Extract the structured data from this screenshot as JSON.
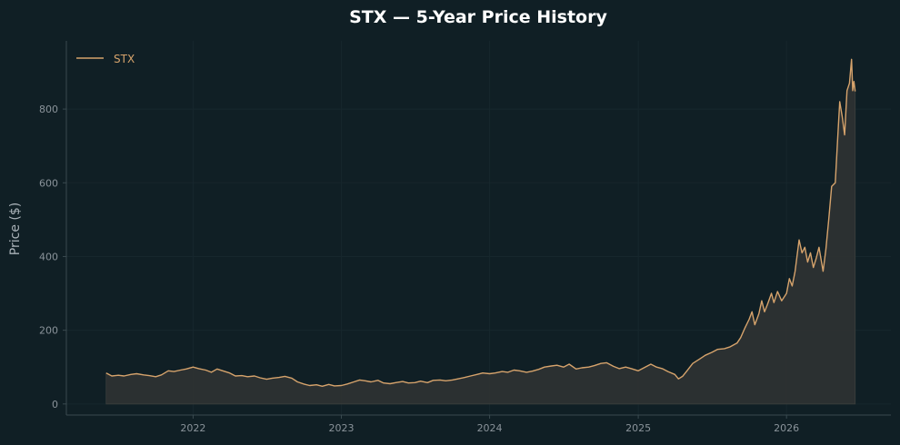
{
  "chart_data": {
    "type": "area",
    "title": "STX — 5-Year Price History",
    "xlabel": "",
    "ylabel": "Price ($)",
    "x_ticks": [
      "2022",
      "2023",
      "2024",
      "2025",
      "2026"
    ],
    "y_ticks": [
      0,
      200,
      400,
      600,
      800
    ],
    "xlim": [
      "2021-02-23",
      "2026-09-15"
    ],
    "ylim": [
      -30,
      985
    ],
    "grid": true,
    "legend_position": "top-left",
    "colors": {
      "background": "#101f25",
      "line": "#d6a36c",
      "fill": "#2d3232",
      "axis": "#3a4a50",
      "grid": "#17272d"
    },
    "series": [
      {
        "name": "STX",
        "points": [
          [
            "2021-06-01",
            84
          ],
          [
            "2021-06-15",
            76
          ],
          [
            "2021-07-01",
            78
          ],
          [
            "2021-07-15",
            76
          ],
          [
            "2021-08-01",
            80
          ],
          [
            "2021-08-15",
            82
          ],
          [
            "2021-09-01",
            79
          ],
          [
            "2021-09-15",
            77
          ],
          [
            "2021-10-01",
            74
          ],
          [
            "2021-10-15",
            79
          ],
          [
            "2021-11-01",
            90
          ],
          [
            "2021-11-15",
            88
          ],
          [
            "2021-12-01",
            92
          ],
          [
            "2021-12-15",
            95
          ],
          [
            "2022-01-01",
            100
          ],
          [
            "2022-01-15",
            96
          ],
          [
            "2022-02-01",
            92
          ],
          [
            "2022-02-15",
            86
          ],
          [
            "2022-03-01",
            95
          ],
          [
            "2022-03-15",
            90
          ],
          [
            "2022-04-01",
            84
          ],
          [
            "2022-04-15",
            76
          ],
          [
            "2022-05-01",
            77
          ],
          [
            "2022-05-15",
            74
          ],
          [
            "2022-06-01",
            76
          ],
          [
            "2022-06-15",
            71
          ],
          [
            "2022-07-01",
            67
          ],
          [
            "2022-07-15",
            70
          ],
          [
            "2022-08-01",
            72
          ],
          [
            "2022-08-15",
            75
          ],
          [
            "2022-09-01",
            70
          ],
          [
            "2022-09-15",
            60
          ],
          [
            "2022-10-01",
            54
          ],
          [
            "2022-10-15",
            50
          ],
          [
            "2022-11-01",
            52
          ],
          [
            "2022-11-15",
            48
          ],
          [
            "2022-12-01",
            53
          ],
          [
            "2022-12-15",
            49
          ],
          [
            "2023-01-01",
            50
          ],
          [
            "2023-01-15",
            54
          ],
          [
            "2023-02-01",
            60
          ],
          [
            "2023-02-15",
            65
          ],
          [
            "2023-03-01",
            63
          ],
          [
            "2023-03-15",
            60
          ],
          [
            "2023-04-01",
            64
          ],
          [
            "2023-04-15",
            57
          ],
          [
            "2023-05-01",
            55
          ],
          [
            "2023-05-15",
            58
          ],
          [
            "2023-06-01",
            61
          ],
          [
            "2023-06-15",
            57
          ],
          [
            "2023-07-01",
            58
          ],
          [
            "2023-07-15",
            62
          ],
          [
            "2023-08-01",
            58
          ],
          [
            "2023-08-15",
            64
          ],
          [
            "2023-09-01",
            65
          ],
          [
            "2023-09-15",
            63
          ],
          [
            "2023-10-01",
            65
          ],
          [
            "2023-10-15",
            68
          ],
          [
            "2023-11-01",
            72
          ],
          [
            "2023-11-15",
            76
          ],
          [
            "2023-12-01",
            80
          ],
          [
            "2023-12-15",
            84
          ],
          [
            "2024-01-01",
            82
          ],
          [
            "2024-01-15",
            84
          ],
          [
            "2024-02-01",
            88
          ],
          [
            "2024-02-15",
            86
          ],
          [
            "2024-03-01",
            92
          ],
          [
            "2024-03-15",
            90
          ],
          [
            "2024-04-01",
            86
          ],
          [
            "2024-04-15",
            89
          ],
          [
            "2024-05-01",
            94
          ],
          [
            "2024-05-15",
            100
          ],
          [
            "2024-06-01",
            103
          ],
          [
            "2024-06-15",
            105
          ],
          [
            "2024-07-01",
            100
          ],
          [
            "2024-07-15",
            108
          ],
          [
            "2024-08-01",
            95
          ],
          [
            "2024-08-15",
            98
          ],
          [
            "2024-09-01",
            100
          ],
          [
            "2024-09-15",
            104
          ],
          [
            "2024-10-01",
            110
          ],
          [
            "2024-10-15",
            112
          ],
          [
            "2024-11-01",
            102
          ],
          [
            "2024-11-15",
            96
          ],
          [
            "2024-12-01",
            100
          ],
          [
            "2024-12-15",
            96
          ],
          [
            "2025-01-01",
            90
          ],
          [
            "2025-01-15",
            98
          ],
          [
            "2025-02-01",
            108
          ],
          [
            "2025-02-15",
            100
          ],
          [
            "2025-03-01",
            96
          ],
          [
            "2025-03-15",
            88
          ],
          [
            "2025-04-01",
            80
          ],
          [
            "2025-04-10",
            68
          ],
          [
            "2025-04-20",
            75
          ],
          [
            "2025-05-01",
            90
          ],
          [
            "2025-05-15",
            110
          ],
          [
            "2025-06-01",
            122
          ],
          [
            "2025-06-15",
            132
          ],
          [
            "2025-07-01",
            140
          ],
          [
            "2025-07-15",
            148
          ],
          [
            "2025-08-01",
            150
          ],
          [
            "2025-08-15",
            155
          ],
          [
            "2025-09-01",
            165
          ],
          [
            "2025-09-10",
            180
          ],
          [
            "2025-09-20",
            205
          ],
          [
            "2025-10-01",
            230
          ],
          [
            "2025-10-08",
            250
          ],
          [
            "2025-10-15",
            215
          ],
          [
            "2025-10-25",
            245
          ],
          [
            "2025-11-01",
            280
          ],
          [
            "2025-11-08",
            250
          ],
          [
            "2025-11-15",
            270
          ],
          [
            "2025-11-25",
            300
          ],
          [
            "2025-12-01",
            275
          ],
          [
            "2025-12-10",
            305
          ],
          [
            "2025-12-20",
            280
          ],
          [
            "2026-01-01",
            300
          ],
          [
            "2026-01-08",
            340
          ],
          [
            "2026-01-15",
            320
          ],
          [
            "2026-01-22",
            360
          ],
          [
            "2026-02-01",
            445
          ],
          [
            "2026-02-08",
            410
          ],
          [
            "2026-02-15",
            425
          ],
          [
            "2026-02-22",
            385
          ],
          [
            "2026-03-01",
            410
          ],
          [
            "2026-03-08",
            370
          ],
          [
            "2026-03-15",
            395
          ],
          [
            "2026-03-22",
            425
          ],
          [
            "2026-04-01",
            360
          ],
          [
            "2026-04-08",
            420
          ],
          [
            "2026-04-15",
            500
          ],
          [
            "2026-04-22",
            590
          ],
          [
            "2026-05-01",
            600
          ],
          [
            "2026-05-06",
            700
          ],
          [
            "2026-05-12",
            820
          ],
          [
            "2026-05-18",
            780
          ],
          [
            "2026-05-24",
            730
          ],
          [
            "2026-05-30",
            850
          ],
          [
            "2026-06-05",
            870
          ],
          [
            "2026-06-10",
            935
          ],
          [
            "2026-06-13",
            850
          ],
          [
            "2026-06-16",
            875
          ],
          [
            "2026-06-19",
            848
          ]
        ]
      }
    ]
  }
}
